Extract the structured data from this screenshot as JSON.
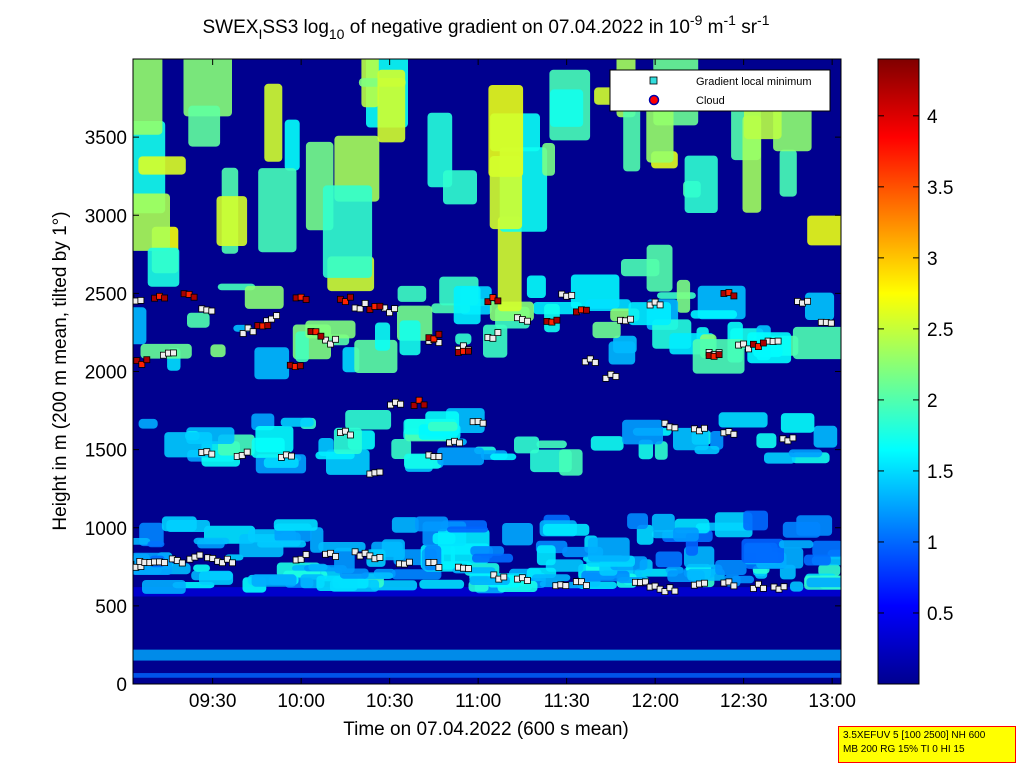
{
  "chart_data": {
    "type": "heatmap",
    "title": {
      "prefix": "SWEX",
      "prefix_sub": "I",
      "mid": "SS3 log",
      "log_base": "10",
      "main": " of negative gradient on 07.04.2022 in 10",
      "exp1": "-9",
      "unit1": " m",
      "exp2": "-1",
      "unit2": " sr",
      "exp3": "-1"
    },
    "xlabel": "Time on 07.04.2022 (600 s mean)",
    "ylabel": "Height in m (200 m mean, tilted by 1°)",
    "xlim": [
      "09:03",
      "13:03"
    ],
    "ylim": [
      0,
      4000
    ],
    "x_ticks": [
      "09:30",
      "10:00",
      "10:30",
      "11:00",
      "11:30",
      "12:00",
      "12:30",
      "13:00"
    ],
    "y_ticks": [
      0,
      500,
      1000,
      1500,
      2000,
      2500,
      3000,
      3500
    ],
    "colorbar": {
      "colormap": "jet",
      "range": [
        0,
        4.4
      ],
      "ticks": [
        "0.5",
        "1",
        "1.5",
        "2",
        "2.5",
        "3",
        "3.5",
        "4"
      ]
    },
    "legend": {
      "position": "top-right",
      "entries": [
        {
          "label": "Gradient local minimum",
          "marker": "square",
          "color": "#33dddd"
        },
        {
          "label": "Cloud",
          "marker": "circle",
          "color": "#ff0000"
        }
      ]
    },
    "layers": [
      {
        "height_range": [
          560,
          620
        ],
        "value": 0.3
      },
      {
        "height_range": [
          620,
          760
        ],
        "value": 1.5
      },
      {
        "height_range": [
          760,
          1050
        ],
        "value": 1.3
      },
      {
        "height_range": [
          1400,
          1700
        ],
        "value": 1.6
      },
      {
        "height_range": [
          2050,
          2550
        ],
        "value": 1.8
      },
      {
        "height_range": [
          2600,
          3900
        ],
        "value": 2.2
      }
    ],
    "minima_series": [
      {
        "name": "Gradient local minimum",
        "points": [
          [
            "09:04",
            760
          ],
          [
            "09:07",
            790
          ],
          [
            "09:12",
            780
          ],
          [
            "09:18",
            790
          ],
          [
            "09:24",
            810
          ],
          [
            "09:30",
            800
          ],
          [
            "09:35",
            790
          ],
          [
            "10:00",
            810
          ],
          [
            "10:10",
            830
          ],
          [
            "10:20",
            830
          ],
          [
            "10:25",
            820
          ],
          [
            "10:35",
            780
          ],
          [
            "10:45",
            760
          ],
          [
            "10:55",
            740
          ],
          [
            "11:07",
            680
          ],
          [
            "11:15",
            670
          ],
          [
            "11:28",
            630
          ],
          [
            "11:35",
            640
          ],
          [
            "11:55",
            650
          ],
          [
            "12:00",
            620
          ],
          [
            "12:05",
            600
          ],
          [
            "12:15",
            630
          ],
          [
            "12:25",
            640
          ],
          [
            "12:35",
            630
          ],
          [
            "12:42",
            610
          ],
          [
            "09:04",
            2470
          ],
          [
            "09:15",
            2110
          ],
          [
            "09:28",
            2390
          ],
          [
            "09:42",
            2260
          ],
          [
            "09:50",
            2340
          ],
          [
            "09:28",
            1470
          ],
          [
            "09:40",
            1470
          ],
          [
            "09:55",
            1460
          ],
          [
            "10:10",
            2190
          ],
          [
            "10:20",
            2420
          ],
          [
            "10:30",
            2390
          ],
          [
            "10:15",
            1600
          ],
          [
            "10:25",
            1350
          ],
          [
            "10:32",
            1790
          ],
          [
            "10:45",
            2200
          ],
          [
            "10:55",
            2150
          ],
          [
            "11:05",
            2230
          ],
          [
            "11:15",
            2330
          ],
          [
            "10:45",
            1470
          ],
          [
            "10:52",
            1550
          ],
          [
            "11:00",
            1680
          ],
          [
            "11:30",
            2490
          ],
          [
            "11:38",
            2070
          ],
          [
            "11:45",
            1970
          ],
          [
            "11:50",
            2330
          ],
          [
            "12:00",
            2430
          ],
          [
            "12:05",
            1650
          ],
          [
            "12:15",
            1630
          ],
          [
            "12:25",
            1600
          ],
          [
            "12:20",
            2110
          ],
          [
            "12:30",
            2160
          ],
          [
            "12:40",
            2180
          ],
          [
            "12:45",
            1560
          ],
          [
            "12:50",
            2450
          ],
          [
            "12:58",
            2300
          ]
        ]
      },
      {
        "name": "Cloud",
        "points": [
          [
            "09:06",
            2060
          ],
          [
            "09:12",
            2480
          ],
          [
            "09:22",
            2480
          ],
          [
            "09:47",
            2290
          ],
          [
            "09:58",
            2050
          ],
          [
            "10:00",
            2470
          ],
          [
            "10:05",
            2240
          ],
          [
            "10:15",
            2460
          ],
          [
            "10:25",
            2410
          ],
          [
            "10:40",
            1800
          ],
          [
            "10:45",
            2220
          ],
          [
            "10:55",
            2140
          ],
          [
            "11:05",
            2460
          ],
          [
            "11:25",
            2330
          ],
          [
            "11:35",
            2400
          ],
          [
            "12:20",
            2100
          ],
          [
            "12:25",
            2490
          ],
          [
            "12:35",
            2170
          ]
        ]
      }
    ]
  },
  "info_box": {
    "line1": "3.5XEFUV 5 [100 2500] NH 600",
    "line2": "MB 200 RG 15% TI 0 HI 15"
  }
}
